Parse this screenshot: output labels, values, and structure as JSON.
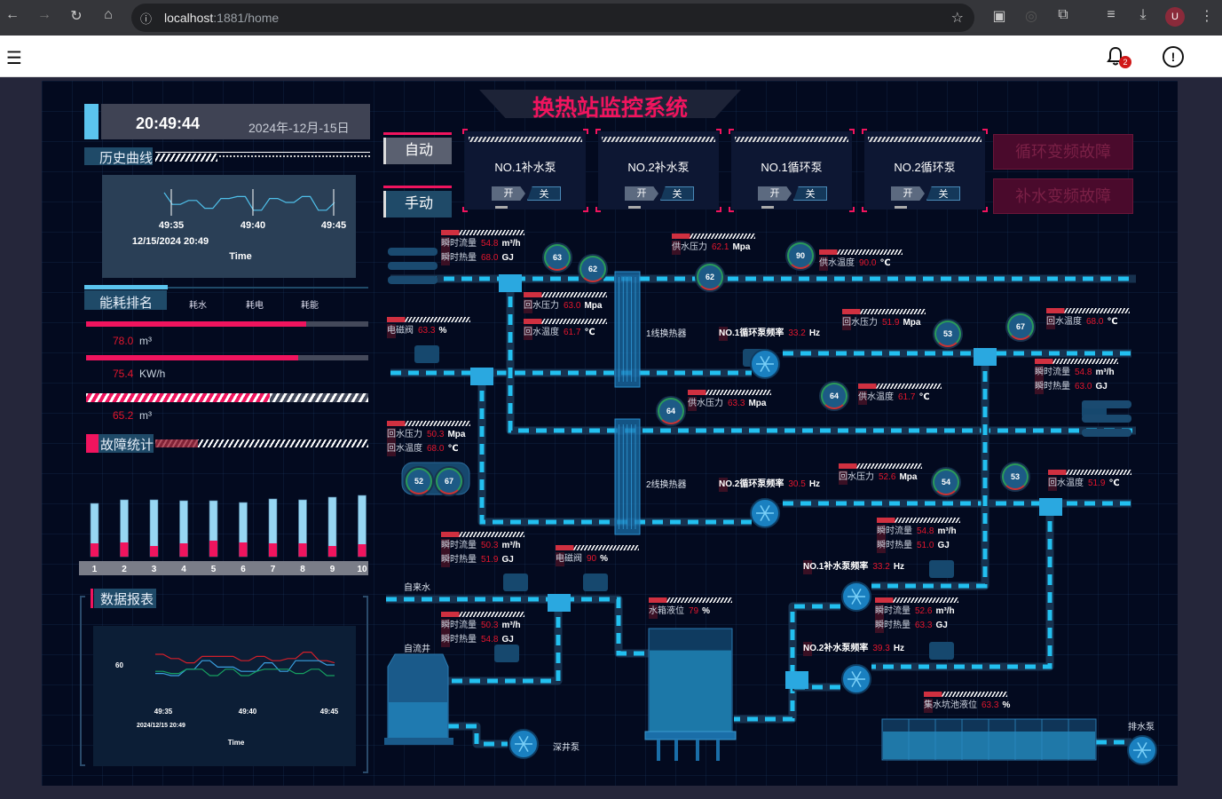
{
  "browser": {
    "url_host": "localhost",
    "url_rest": ":1881/home",
    "profile": "U",
    "notifications": "2"
  },
  "header": {
    "title": "换热站监控系统",
    "time": "20:49:44",
    "date": "2024年-12月-15日"
  },
  "mode": {
    "auto": "自动",
    "manual": "手动"
  },
  "pumps": [
    {
      "name": "NO.1补水泵",
      "on": "开",
      "off": "关"
    },
    {
      "name": "NO.2补水泵",
      "on": "开",
      "off": "关"
    },
    {
      "name": "NO.1循环泵",
      "on": "开",
      "off": "关"
    },
    {
      "name": "NO.2循环泵",
      "on": "开",
      "off": "关"
    }
  ],
  "faults": [
    "循环变频故障",
    "补水变频故障"
  ],
  "history": {
    "tab": "历史曲线",
    "ticks": [
      "49:35",
      "49:40",
      "49:45"
    ],
    "date": "12/15/2024 20:49",
    "xlabel": "Time",
    "values": [
      62,
      56,
      56,
      58,
      58,
      54,
      54,
      59,
      59,
      60,
      60,
      53,
      53,
      59,
      59,
      57,
      57,
      60,
      60,
      53,
      53,
      57
    ]
  },
  "energy": {
    "tab": "能耗排名",
    "tabs": [
      "耗水",
      "耗电",
      "耗能"
    ],
    "items": [
      {
        "value": "78.0",
        "unit": "m³",
        "fill": 78
      },
      {
        "value": "75.4",
        "unit": "KW/h",
        "fill": 75
      },
      {
        "value": "65.2",
        "unit": "m³",
        "fill": 65
      }
    ]
  },
  "faultstats": {
    "tab": "故障统计",
    "categories": [
      "1",
      "2",
      "3",
      "4",
      "5",
      "6",
      "7",
      "8",
      "9",
      "10"
    ],
    "total": [
      60,
      64,
      64,
      63,
      63,
      61,
      65,
      64,
      67,
      69
    ],
    "fault": [
      15,
      16,
      12,
      15,
      18,
      16,
      15,
      15,
      12,
      14
    ]
  },
  "report": {
    "tab": "数据报表",
    "ytick": "60",
    "ticks": [
      "49:35",
      "49:40",
      "49:45"
    ],
    "date": "2024/12/15 20:49",
    "xlabel": "Time",
    "series": [
      {
        "color": "#d21f2a",
        "values": [
          65,
          65,
          63,
          63,
          61,
          61,
          64,
          64,
          64,
          64,
          64,
          62,
          62,
          64,
          64,
          62,
          62,
          63,
          63,
          66,
          66,
          62,
          62,
          61
        ]
      },
      {
        "color": "#3aa0e0",
        "values": [
          56,
          56,
          55,
          55,
          58,
          58,
          62,
          62,
          59,
          59,
          59,
          57,
          57,
          57,
          61,
          61,
          57,
          57,
          62,
          62,
          62,
          62,
          60,
          60
        ]
      },
      {
        "color": "#16a060",
        "values": [
          57,
          57,
          56,
          56,
          58,
          58,
          58,
          55,
          55,
          58,
          58,
          55,
          55,
          57,
          58,
          58,
          58,
          58,
          56,
          56,
          58,
          58,
          55,
          55
        ]
      }
    ]
  },
  "readouts": [
    [
      {
        "l": "瞬时流量",
        "v": "54.8",
        "u": "m³/h"
      },
      {
        "l": "瞬时热量",
        "v": "68.0",
        "u": "GJ"
      }
    ],
    [
      {
        "l": "供水压力",
        "v": "62.1",
        "u": "Mpa"
      }
    ],
    [
      {
        "l": "供水温度",
        "v": "90.0",
        "u": "℃"
      }
    ],
    [
      {
        "l": "回水压力",
        "v": "63.0",
        "u": "Mpa"
      }
    ],
    [
      {
        "l": "回水温度",
        "v": "61.7",
        "u": "℃"
      }
    ],
    [
      {
        "l": "电磁阀",
        "v": "63.3",
        "u": "%"
      }
    ],
    [
      {
        "l": "回水压力",
        "v": "51.9",
        "u": "Mpa"
      }
    ],
    [
      {
        "l": "回水温度",
        "v": "68.0",
        "u": "℃"
      }
    ],
    [
      {
        "l": "瞬时流量",
        "v": "54.8",
        "u": "m³/h"
      },
      {
        "l": "瞬时热量",
        "v": "63.0",
        "u": "GJ"
      }
    ],
    [
      {
        "l": "供水压力",
        "v": "63.3",
        "u": "Mpa"
      }
    ],
    [
      {
        "l": "供水温度",
        "v": "61.7",
        "u": "℃"
      }
    ],
    [
      {
        "l": "回水压力",
        "v": "50.3",
        "u": "Mpa"
      },
      {
        "l": "回水温度",
        "v": "68.0",
        "u": "℃"
      }
    ],
    [
      {
        "l": "回水压力",
        "v": "52.6",
        "u": "Mpa"
      }
    ],
    [
      {
        "l": "回水温度",
        "v": "51.9",
        "u": "℃"
      }
    ],
    [
      {
        "l": "瞬时流量",
        "v": "50.3",
        "u": "m³/h"
      },
      {
        "l": "瞬时热量",
        "v": "51.9",
        "u": "GJ"
      }
    ],
    [
      {
        "l": "电磁阀",
        "v": "90",
        "u": "%"
      }
    ],
    [
      {
        "l": "瞬时流量",
        "v": "54.8",
        "u": "m³/h"
      },
      {
        "l": "瞬时热量",
        "v": "51.0",
        "u": "GJ"
      }
    ],
    [
      {
        "l": "瞬时流量",
        "v": "52.6",
        "u": "m³/h"
      },
      {
        "l": "瞬时热量",
        "v": "63.3",
        "u": "GJ"
      }
    ],
    [
      {
        "l": "水箱液位",
        "v": "79",
        "u": "%"
      }
    ],
    [
      {
        "l": "瞬时流量",
        "v": "50.3",
        "u": "m³/h"
      },
      {
        "l": "瞬时热量",
        "v": "54.8",
        "u": "GJ"
      }
    ],
    [
      {
        "l": "集水坑池液位",
        "v": "63.3",
        "u": "%"
      }
    ],
    [
      {
        "l": "NO.1循环泵频率",
        "v": "33.2",
        "u": "Hz"
      }
    ],
    [
      {
        "l": "NO.2循环泵频率",
        "v": "30.5",
        "u": "Hz"
      }
    ],
    [
      {
        "l": "NO.1补水泵频率",
        "v": "33.2",
        "u": "Hz"
      }
    ],
    [
      {
        "l": "NO.2补水泵频率",
        "v": "39.3",
        "u": "Hz"
      }
    ]
  ],
  "labels": [
    "1线换热器",
    "2线换热器",
    "自来水",
    "自流井",
    "深井泵",
    "排水泵"
  ],
  "gauges": [
    "63",
    "62",
    "62",
    "90",
    "53",
    "67",
    "64",
    "64",
    "52",
    "67",
    "54",
    "53"
  ],
  "tank_level": 79,
  "sump_level": 63.3
}
